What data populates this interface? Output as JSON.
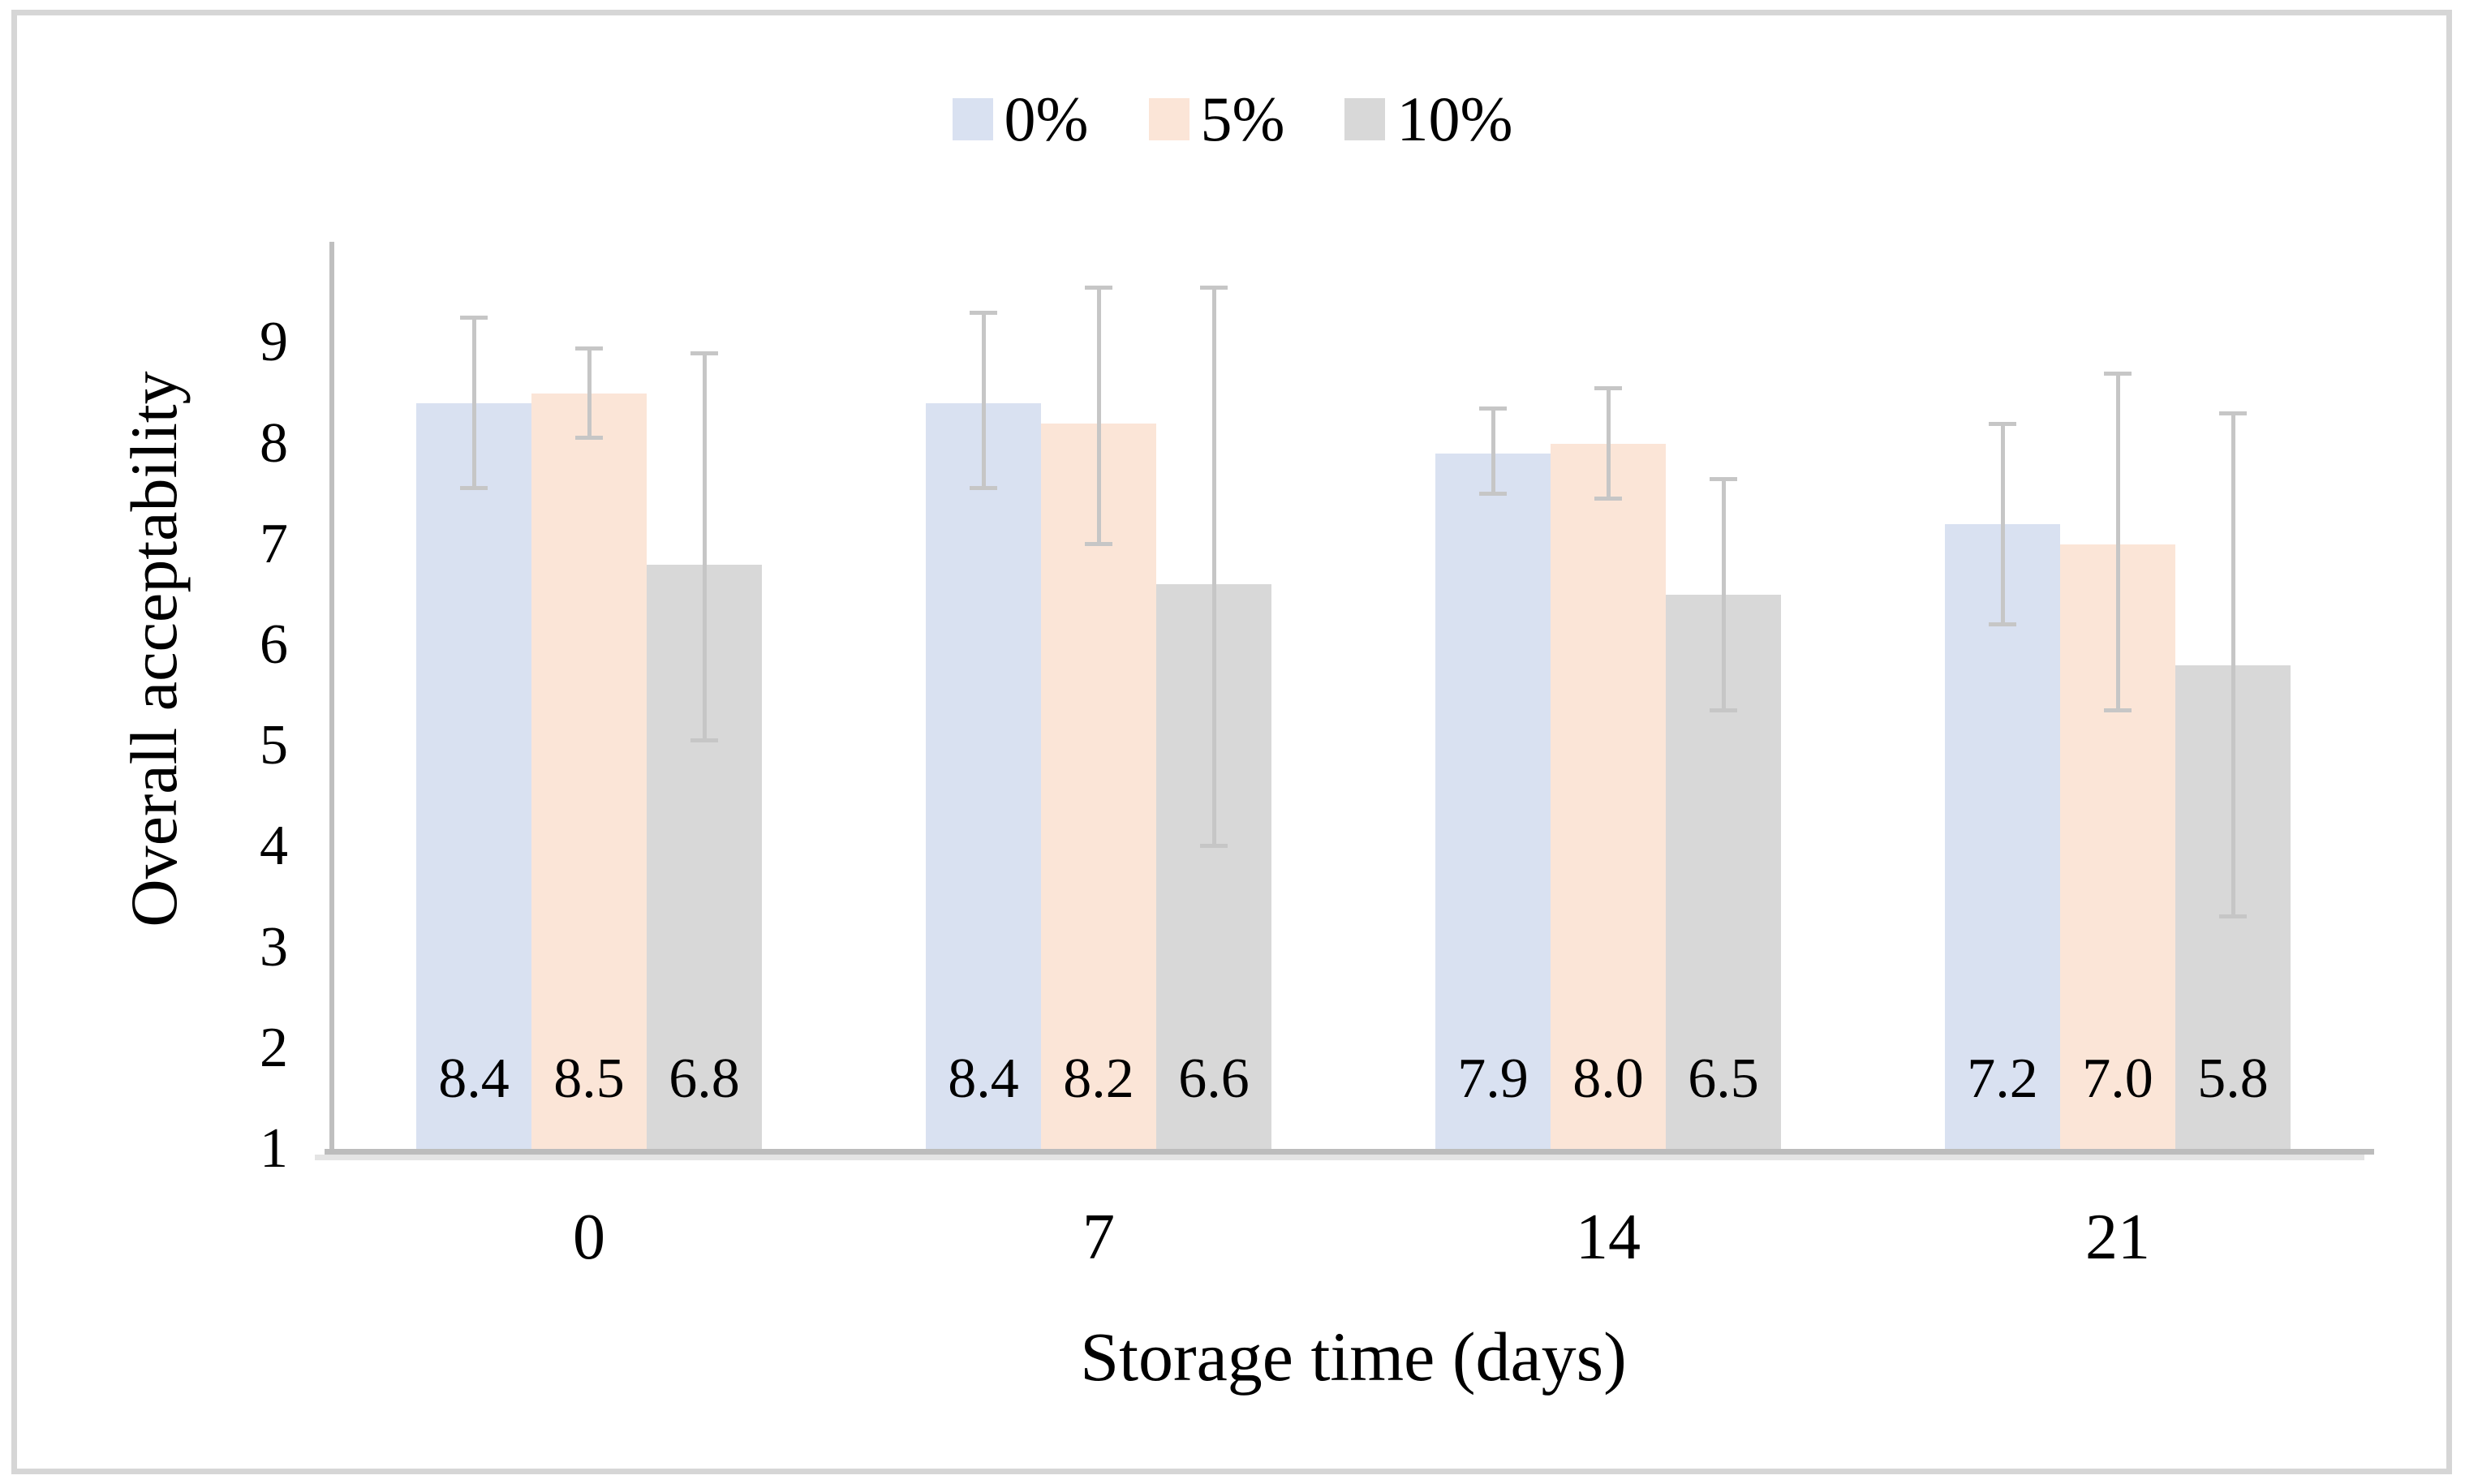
{
  "figure": {
    "background": "#ffffff",
    "frame_border_color": "#d6d6d6"
  },
  "legend": {
    "items": [
      {
        "label": "0%",
        "color": "#d9e1f1"
      },
      {
        "label": "5%",
        "color": "#fbe5d7"
      },
      {
        "label": "10%",
        "color": "#d8d8d8"
      }
    ]
  },
  "chart_data": {
    "type": "bar",
    "title": "",
    "xlabel": "Storage time (days)",
    "ylabel": "Overall acceptability",
    "categories": [
      "0",
      "7",
      "14",
      "21"
    ],
    "series": [
      {
        "name": "0%",
        "color": "#d9e1f1",
        "values": [
          8.4,
          8.4,
          7.9,
          7.2
        ],
        "error_low": [
          7.55,
          7.55,
          7.5,
          6.2
        ],
        "error_high": [
          9.25,
          9.3,
          8.35,
          8.2
        ]
      },
      {
        "name": "5%",
        "color": "#fbe5d7",
        "values": [
          8.5,
          8.2,
          8.0,
          7.0
        ],
        "error_low": [
          8.05,
          7.0,
          7.45,
          5.35
        ],
        "error_high": [
          8.95,
          9.55,
          8.55,
          8.7
        ]
      },
      {
        "name": "10%",
        "color": "#d8d8d8",
        "values": [
          6.8,
          6.6,
          6.5,
          5.8
        ],
        "error_low": [
          5.05,
          4.0,
          5.35,
          3.3
        ],
        "error_high": [
          8.9,
          9.55,
          7.65,
          8.3
        ]
      }
    ],
    "data_labels": [
      [
        "8.4",
        "8.5",
        "6.8"
      ],
      [
        "8.4",
        "8.2",
        "6.6"
      ],
      [
        "7.9",
        "8.0",
        "6.5"
      ],
      [
        "7.2",
        "7.0",
        "5.8"
      ]
    ],
    "y_ticks": [
      "9",
      "8",
      "7",
      "6",
      "5",
      "4",
      "3",
      "2",
      "1"
    ],
    "ylim": [
      1,
      10
    ],
    "grid": false,
    "legend_position": "top",
    "axis_color": "#bfbfbf",
    "error_bar_color": "#c6c6c6",
    "label_color": "#000000"
  }
}
